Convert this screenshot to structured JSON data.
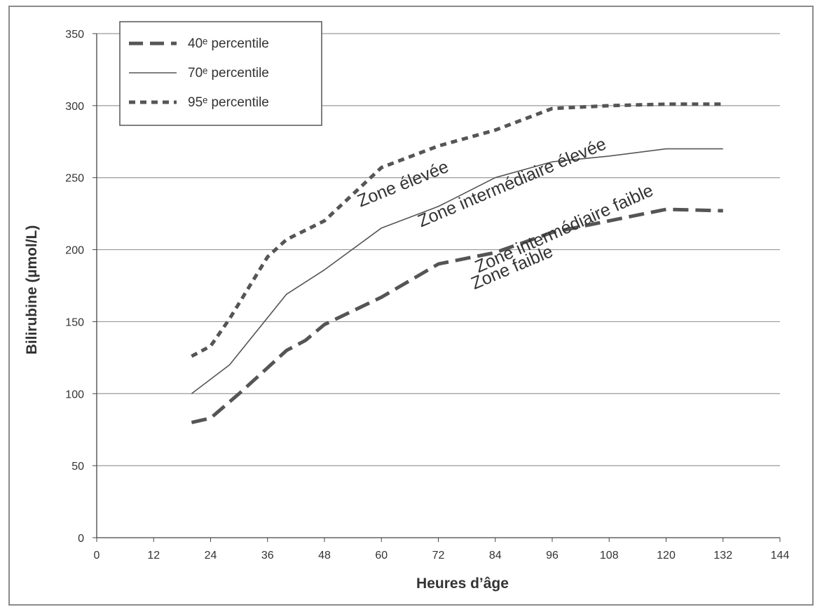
{
  "chart_data": {
    "type": "line",
    "title": "",
    "xlabel": "Heures d’âge",
    "ylabel": "Bilirubine (µmol/L)",
    "xlim": [
      0,
      144
    ],
    "ylim": [
      0,
      350
    ],
    "xticks": [
      0,
      12,
      24,
      36,
      48,
      60,
      72,
      84,
      96,
      108,
      120,
      132,
      144
    ],
    "yticks": [
      0,
      50,
      100,
      150,
      200,
      250,
      300,
      350
    ],
    "grid": "horizontal",
    "legend_position": "top-left",
    "series": [
      {
        "name": "40ᵉ percentile",
        "style": "dashed",
        "color": "#555555",
        "points": [
          [
            20,
            80
          ],
          [
            24,
            83
          ],
          [
            30,
            100
          ],
          [
            36,
            118
          ],
          [
            40,
            130
          ],
          [
            44,
            137
          ],
          [
            48,
            148
          ],
          [
            60,
            167
          ],
          [
            72,
            190
          ],
          [
            84,
            198
          ],
          [
            96,
            212
          ],
          [
            108,
            220
          ],
          [
            120,
            228
          ],
          [
            132,
            227
          ]
        ]
      },
      {
        "name": "70ᵉ percentile",
        "style": "solid",
        "color": "#555555",
        "points": [
          [
            20,
            100
          ],
          [
            28,
            120
          ],
          [
            40,
            169
          ],
          [
            48,
            186
          ],
          [
            60,
            215
          ],
          [
            72,
            230
          ],
          [
            84,
            250
          ],
          [
            96,
            261
          ],
          [
            108,
            265
          ],
          [
            120,
            270
          ],
          [
            132,
            270
          ]
        ]
      },
      {
        "name": "95ᵉ percentile",
        "style": "dotted",
        "color": "#555555",
        "points": [
          [
            20,
            126
          ],
          [
            24,
            133
          ],
          [
            28,
            152
          ],
          [
            36,
            195
          ],
          [
            40,
            207
          ],
          [
            48,
            220
          ],
          [
            60,
            257
          ],
          [
            72,
            272
          ],
          [
            84,
            283
          ],
          [
            96,
            298
          ],
          [
            108,
            300
          ],
          [
            120,
            301
          ],
          [
            132,
            301
          ]
        ]
      }
    ],
    "annotations": [
      {
        "text": "Zone élevée",
        "x": 65,
        "y": 242,
        "angle": -22
      },
      {
        "text": "Zone intermédiaire élevée",
        "x": 88,
        "y": 243,
        "angle": -23
      },
      {
        "text": "Zone intermédiaire faible",
        "x": 99,
        "y": 211,
        "angle": -24
      },
      {
        "text": "Zone faible",
        "x": 88,
        "y": 184,
        "angle": -23
      }
    ]
  }
}
